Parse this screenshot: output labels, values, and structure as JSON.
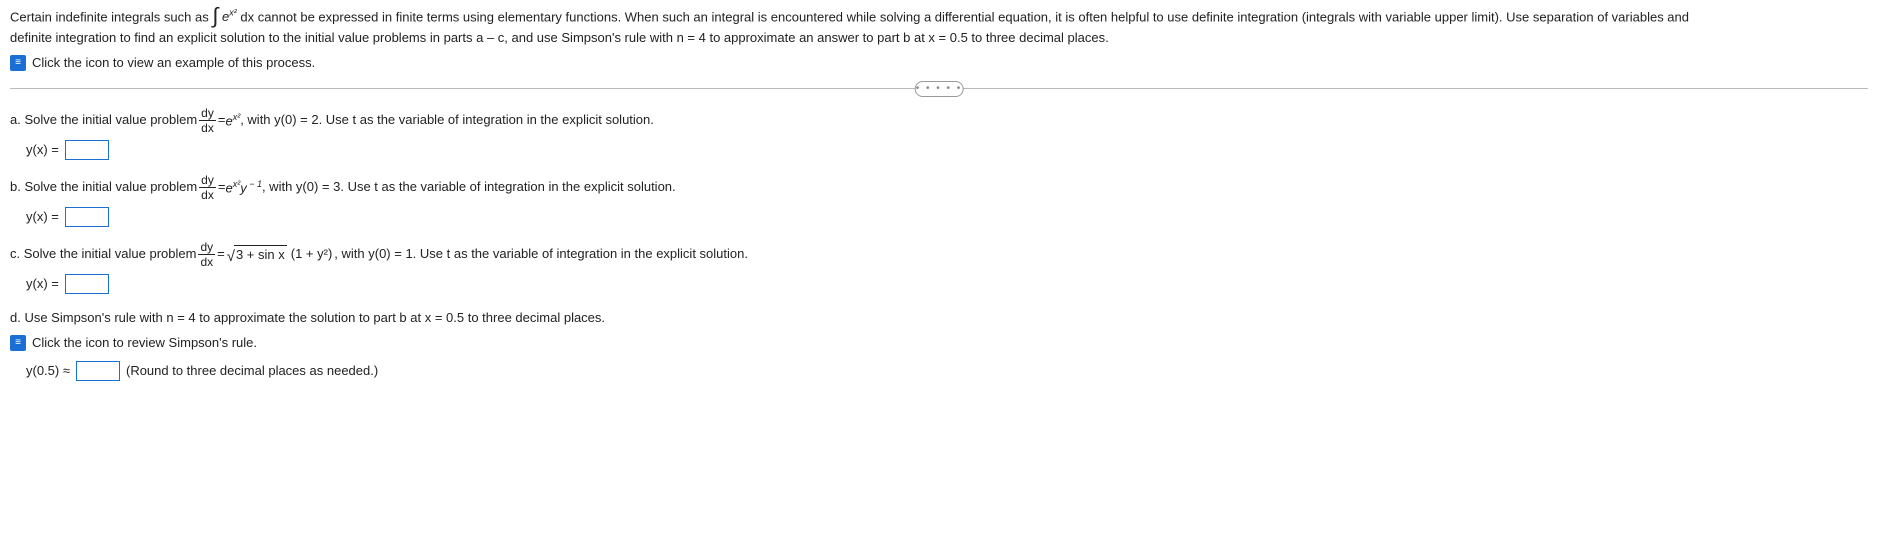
{
  "intro": {
    "pre": "Certain indefinite integrals such as ",
    "integrand": "dx cannot be expressed in finite terms using elementary functions. When such an integral is encountered while solving a differential equation, it is often helpful to use definite integration (integrals with variable upper limit). Use separation of variables and",
    "line2": "definite integration to find an explicit solution to the initial value problems in parts a – c, and use Simpson's rule with n = 4 to approximate an answer to part b at x = 0.5 to three decimal places."
  },
  "icon_glyph": "≡",
  "divider_dots": "• • • • •",
  "link1": "Click the icon to view an example of this process.",
  "partA": {
    "lead": "a. Solve the initial value problem ",
    "tail": ", with y(0) = 2. Use t as the variable of integration in the explicit solution.",
    "answer_label": "y(x) ="
  },
  "partB": {
    "lead": "b. Solve the initial value problem ",
    "tail": ", with y(0) = 3. Use t as the variable of integration in the explicit solution.",
    "answer_label": "y(x) ="
  },
  "partC": {
    "lead": "c. Solve the initial value problem ",
    "tail": ", with y(0) = 1. Use t as the variable of integration in the explicit solution.",
    "answer_label": "y(x) ="
  },
  "partD": {
    "text": "d. Use Simpson's rule with n = 4 to approximate the solution to part b at x = 0.5 to three decimal places.",
    "answer_label": "y(0.5) ≈",
    "round_hint": "(Round to three decimal places as needed.)"
  },
  "link2": "Click the icon to review Simpson's rule.",
  "math": {
    "dy": "dy",
    "dx": "dx",
    "eq": " = ",
    "e": "e",
    "x2": "x²",
    "yinv": "y",
    "neg1": " − 1",
    "sqrt_inside": "3 + sin x",
    "paren": "(1 + y²)",
    "int_sym": "∫",
    "surd": "√"
  },
  "colors": {
    "link_blue": "#1a6fd6",
    "rule_gray": "#bbbbbb",
    "text": "#222222"
  }
}
